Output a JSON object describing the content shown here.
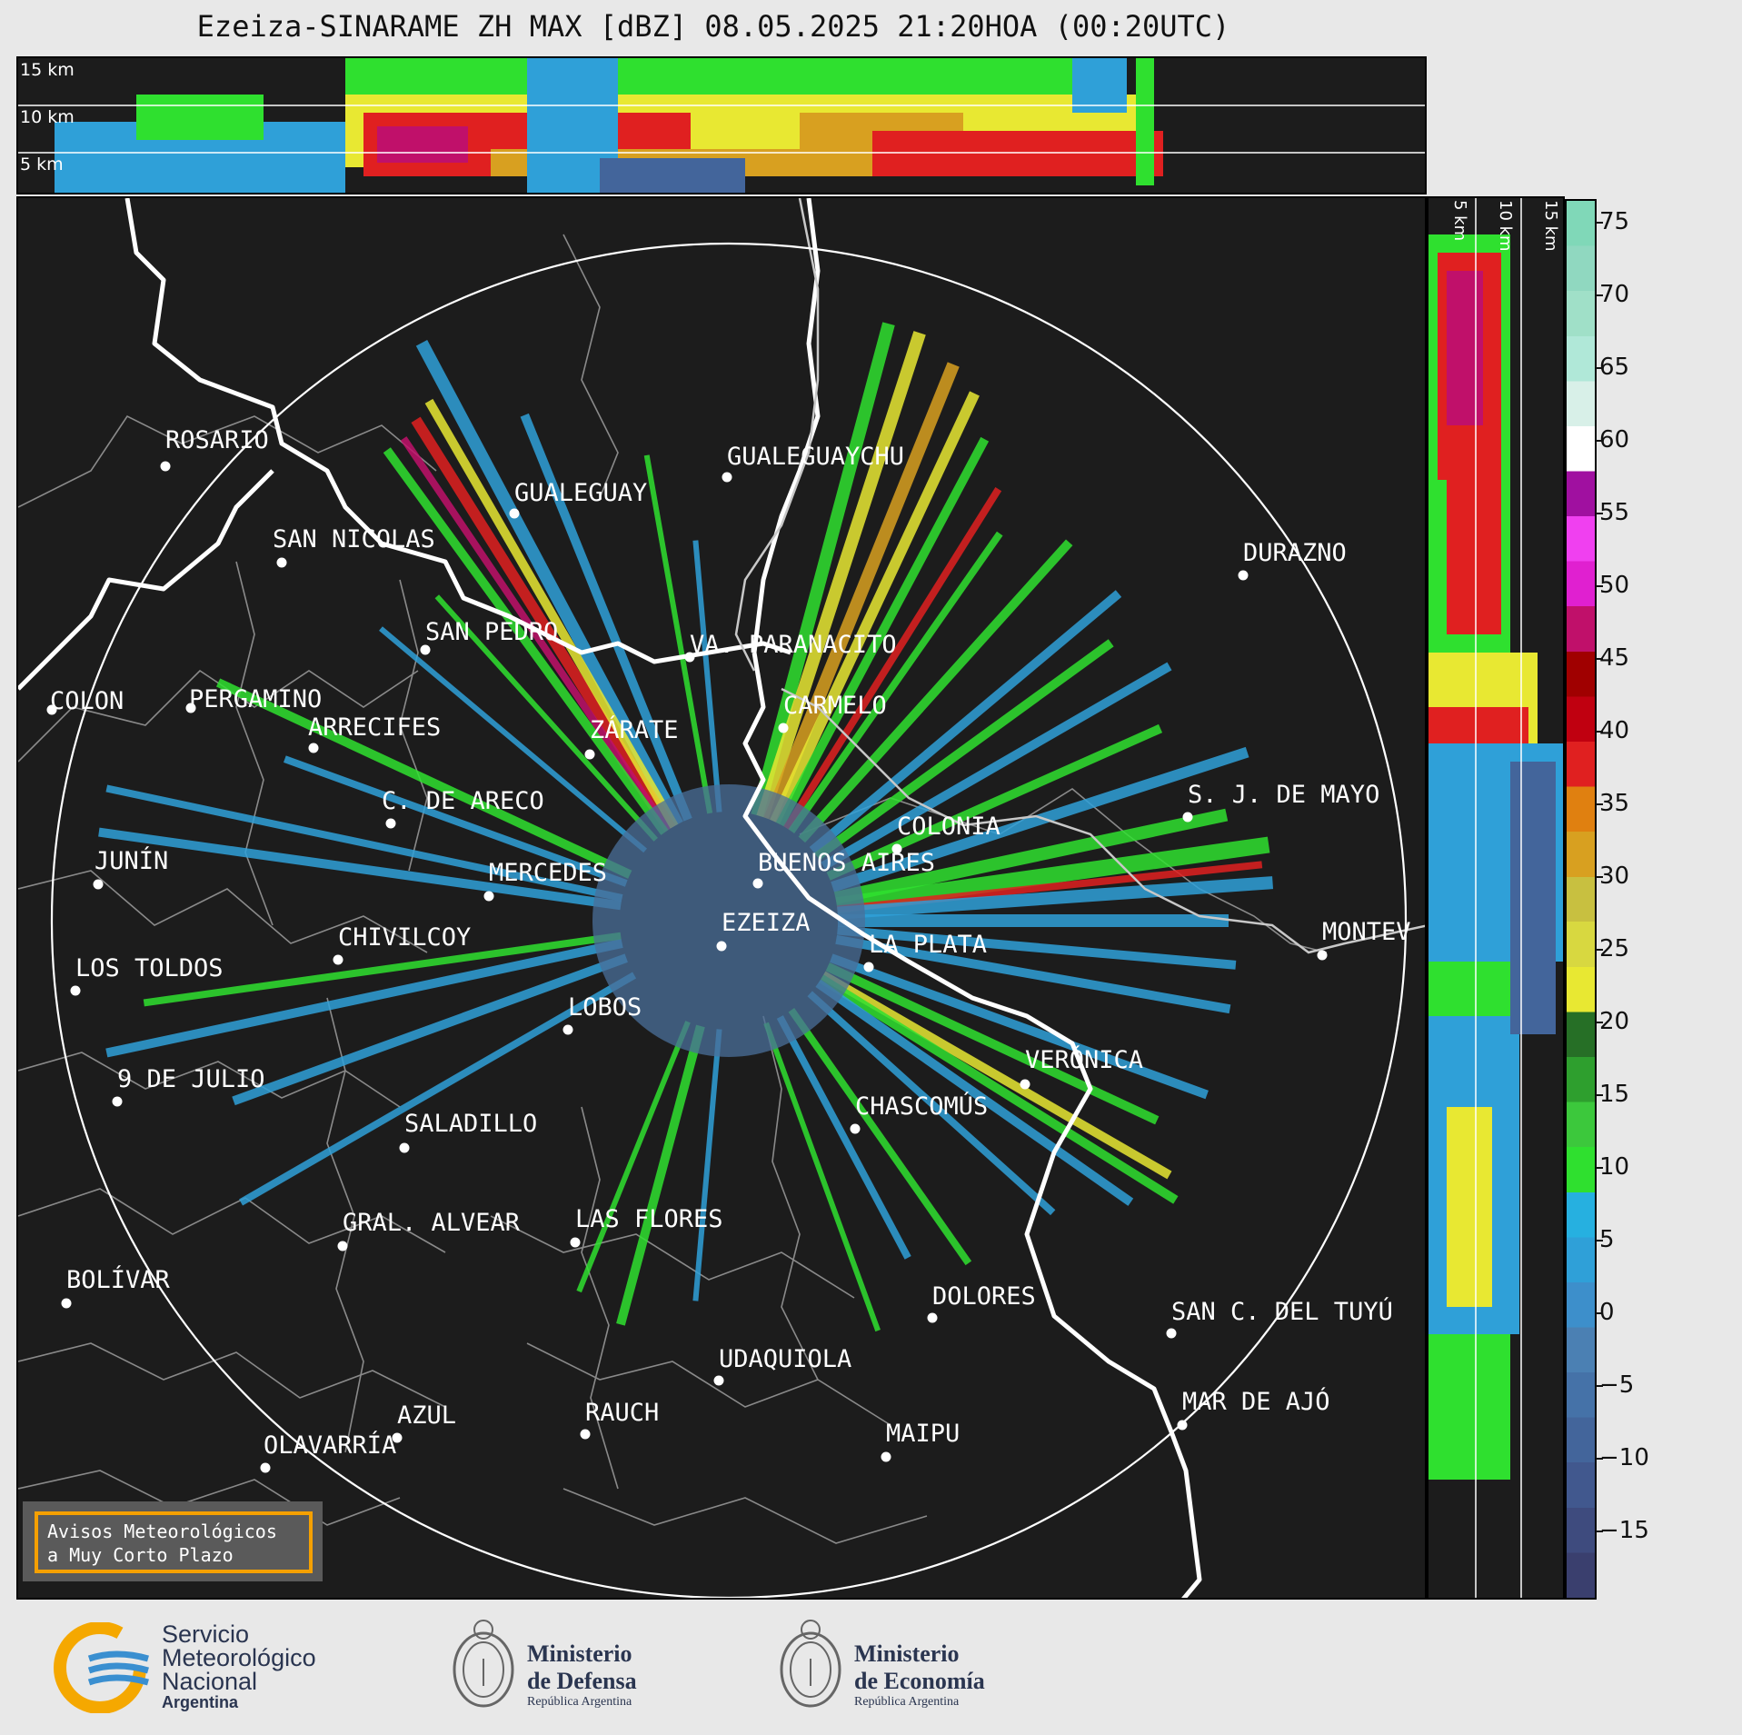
{
  "title": "Ezeiza-SINARAME ZH MAX [dBZ] 08.05.2025 21:20HOA (00:20UTC)",
  "top_panel": {
    "altitude_labels": [
      "15 km",
      "10 km",
      "5 km"
    ]
  },
  "side_panel": {
    "altitude_labels": [
      "5 km",
      "10 km",
      "15 km"
    ]
  },
  "colorbar": {
    "ticks": [
      "75",
      "70",
      "65",
      "60",
      "55",
      "50",
      "45",
      "40",
      "35",
      "30",
      "25",
      "20",
      "15",
      "10",
      "5",
      "0",
      "−5",
      "−10",
      "−15"
    ],
    "colors": [
      "#3a3f6e",
      "#3e4b7e",
      "#41588e",
      "#43659b",
      "#4572a8",
      "#4b80b3",
      "#3d8fcb",
      "#2fa0d8",
      "#26b0e0",
      "#2fe02f",
      "#3cc83c",
      "#2e9f2e",
      "#266f26",
      "#e8e832",
      "#d8d840",
      "#c8c040",
      "#d8a020",
      "#e08010",
      "#e02020",
      "#c00010",
      "#a00000",
      "#c0106a",
      "#e020d0",
      "#f040f0",
      "#a010a0",
      "#ffffff",
      "#d8f0e8",
      "#b0e8d8",
      "#a0e0c8",
      "#90d8c0",
      "#80d8b8"
    ],
    "accent": "#f5a000"
  },
  "map": {
    "cities": [
      {
        "name": "ROSARIO"
      },
      {
        "name": "GUALEGUAYCHU"
      },
      {
        "name": "GUALEGUAY"
      },
      {
        "name": "SAN NICOLAS"
      },
      {
        "name": "DURAZNO"
      },
      {
        "name": "SAN PEDRO"
      },
      {
        "name": "VA. PARANACITO"
      },
      {
        "name": "COLON"
      },
      {
        "name": "PERGAMINO"
      },
      {
        "name": "CARMELO"
      },
      {
        "name": "ARRECIFES"
      },
      {
        "name": "ZÁRATE"
      },
      {
        "name": "S. J. DE MAYO"
      },
      {
        "name": "C. DE ARECO"
      },
      {
        "name": "COLONIA"
      },
      {
        "name": "JUNÍN"
      },
      {
        "name": "BUENOS AIRES"
      },
      {
        "name": "MERCEDES"
      },
      {
        "name": "MONTEV"
      },
      {
        "name": "EZEIZA"
      },
      {
        "name": "CHIVILCOY"
      },
      {
        "name": "LA PLATA"
      },
      {
        "name": "LOS TOLDOS"
      },
      {
        "name": "LOBOS"
      },
      {
        "name": "VERÓNICA"
      },
      {
        "name": "9 DE JULIO"
      },
      {
        "name": "CHASCOMÚS"
      },
      {
        "name": "SALADILLO"
      },
      {
        "name": "GRAL. ALVEAR"
      },
      {
        "name": "LAS FLORES"
      },
      {
        "name": "BOLÍVAR"
      },
      {
        "name": "DOLORES"
      },
      {
        "name": "SAN C. DEL TUYÚ"
      },
      {
        "name": "UDAQUIOLA"
      },
      {
        "name": "AZUL"
      },
      {
        "name": "RAUCH"
      },
      {
        "name": "MAR DE AJÓ"
      },
      {
        "name": "OLAVARRÍA"
      },
      {
        "name": "MAIPU"
      }
    ],
    "notice": [
      "Avisos Meteorológicos",
      "a Muy Corto Plazo"
    ]
  },
  "logos": {
    "smn": [
      "Servicio",
      "Meteorológico",
      "Nacional",
      "Argentina"
    ],
    "defensa": [
      "Ministerio",
      "de Defensa",
      "República Argentina"
    ],
    "economia": [
      "Ministerio",
      "de Economía",
      "República Argentina"
    ]
  }
}
